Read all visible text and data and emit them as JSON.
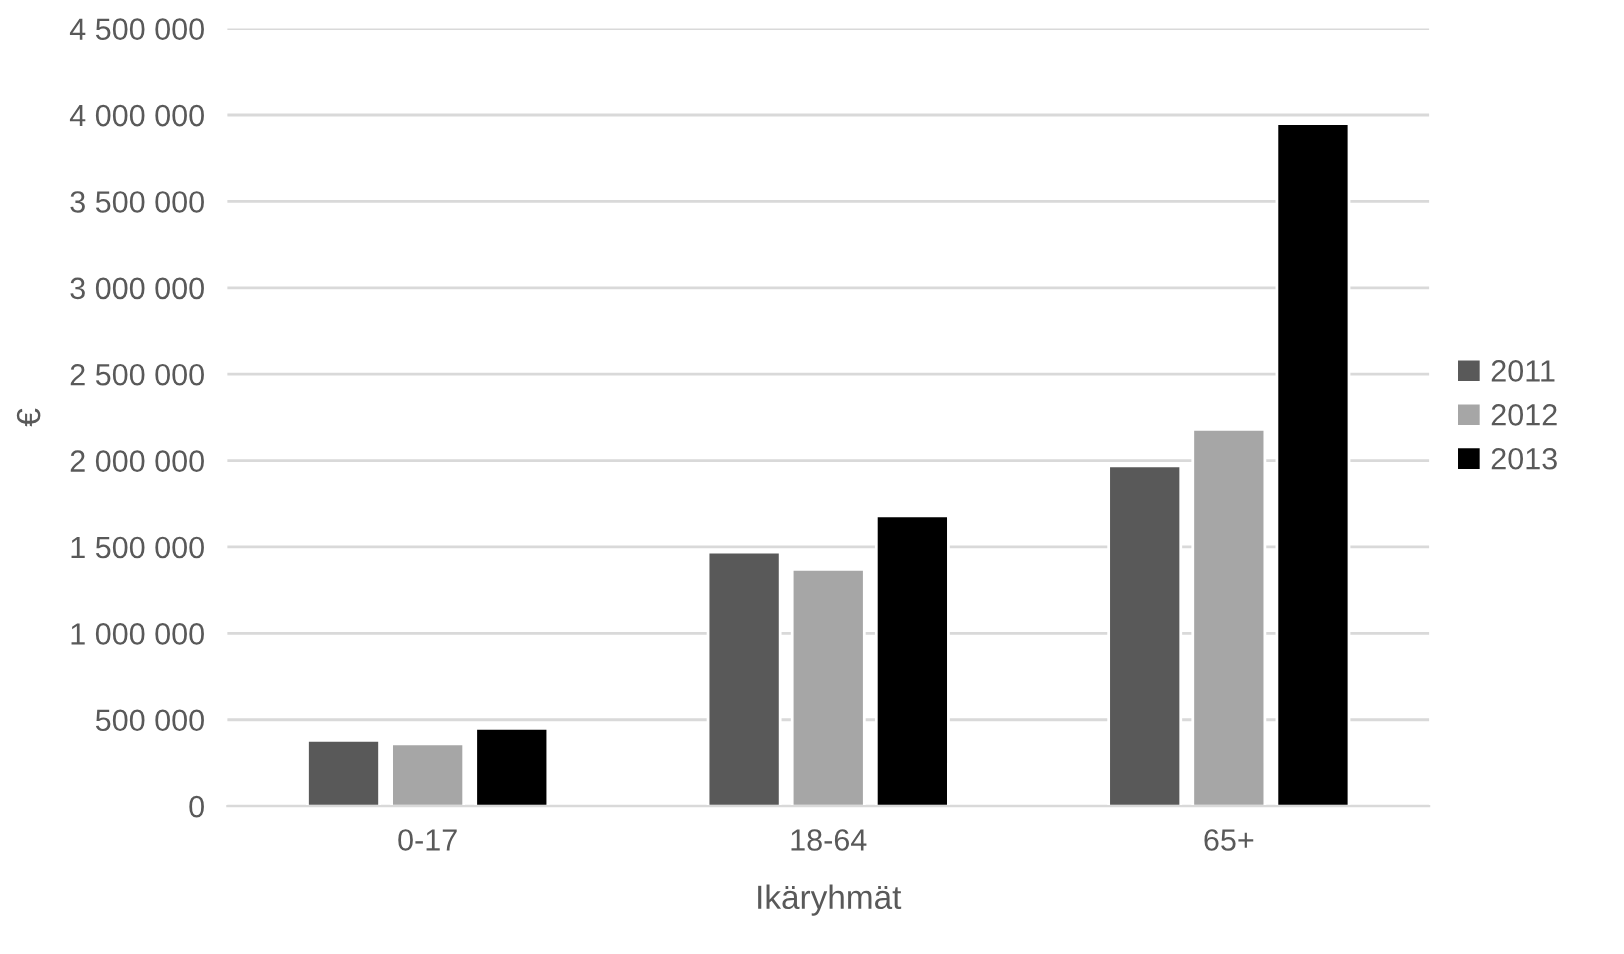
{
  "chart_data": {
    "type": "bar",
    "xlabel": "Ikäryhmät",
    "ylabel": "€",
    "categories": [
      "0-17",
      "18-64",
      "65+"
    ],
    "series": [
      {
        "name": "2011",
        "color": "#595959",
        "values": [
          380000,
          1470000,
          1970000
        ]
      },
      {
        "name": "2012",
        "color": "#a6a6a6",
        "values": [
          360000,
          1370000,
          2180000
        ]
      },
      {
        "name": "2013",
        "color": "#000000",
        "values": [
          450000,
          1680000,
          3950000
        ]
      }
    ],
    "ylim": [
      0,
      4500000
    ],
    "yticks": [
      0,
      {
        "value": 500000,
        "label": "500 000"
      },
      {
        "value": 1000000,
        "label": "1 000 000"
      },
      {
        "value": 1500000,
        "label": "1 500 000"
      },
      {
        "value": 2000000,
        "label": "2 000 000"
      },
      {
        "value": 2500000,
        "label": "2 500 000"
      },
      {
        "value": 3000000,
        "label": "3 000 000"
      },
      {
        "value": 3500000,
        "label": "3 500 000"
      },
      {
        "value": 4000000,
        "label": "4 000 000"
      },
      {
        "value": 4500000,
        "label": "4 500 000"
      }
    ],
    "grid": "y",
    "legend": "right"
  }
}
